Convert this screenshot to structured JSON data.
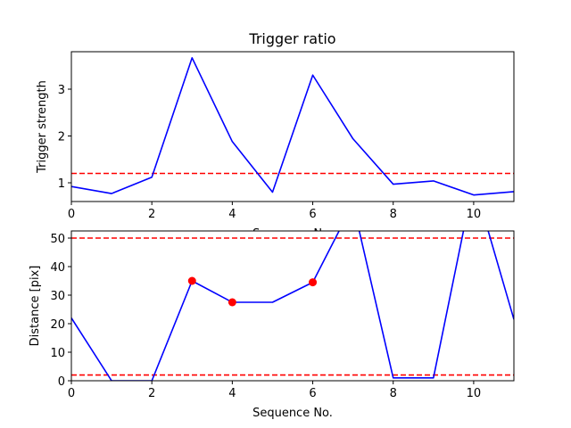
{
  "chart_data": [
    {
      "type": "line",
      "title": "Trigger ratio",
      "xlabel": "Sequence No.",
      "ylabel": "Trigger strength",
      "xlim": [
        0,
        11
      ],
      "ylim": [
        0.6,
        3.8
      ],
      "xticks": [
        0,
        2,
        4,
        6,
        8,
        10
      ],
      "yticks": [
        1,
        2,
        3
      ],
      "grid": false,
      "series": [
        {
          "color": "#0000ff",
          "x": [
            0,
            1,
            2,
            3,
            4,
            5,
            6,
            7,
            8,
            9,
            10,
            11
          ],
          "values": [
            0.92,
            0.77,
            1.12,
            3.67,
            1.88,
            0.8,
            3.3,
            1.94,
            0.97,
            1.04,
            0.74,
            0.81
          ]
        }
      ],
      "reference_lines": [
        {
          "y": 1.2,
          "color": "#ff0000",
          "style": "dashed"
        }
      ]
    },
    {
      "type": "line",
      "title": "",
      "xlabel": "Sequence No.",
      "ylabel": "Distance [pix]",
      "xlim": [
        0,
        11
      ],
      "ylim": [
        0,
        52.5
      ],
      "xticks": [
        0,
        2,
        4,
        6,
        8,
        10
      ],
      "yticks": [
        0,
        10,
        20,
        30,
        40,
        50
      ],
      "grid": false,
      "series": [
        {
          "color": "#0000ff",
          "x": [
            0,
            1,
            2,
            3,
            4,
            5,
            6,
            7,
            8,
            9,
            10,
            11
          ],
          "values": [
            22,
            0,
            0,
            35,
            27.5,
            27.5,
            34.5,
            62,
            1,
            1,
            70,
            21.5
          ]
        }
      ],
      "highlight_points": {
        "color": "#ff0000",
        "x": [
          3,
          4,
          6
        ],
        "values": [
          35,
          27.5,
          34.5
        ]
      },
      "reference_lines": [
        {
          "y": 50,
          "color": "#ff0000",
          "style": "dashed"
        },
        {
          "y": 2,
          "color": "#ff0000",
          "style": "dashed"
        }
      ]
    }
  ]
}
